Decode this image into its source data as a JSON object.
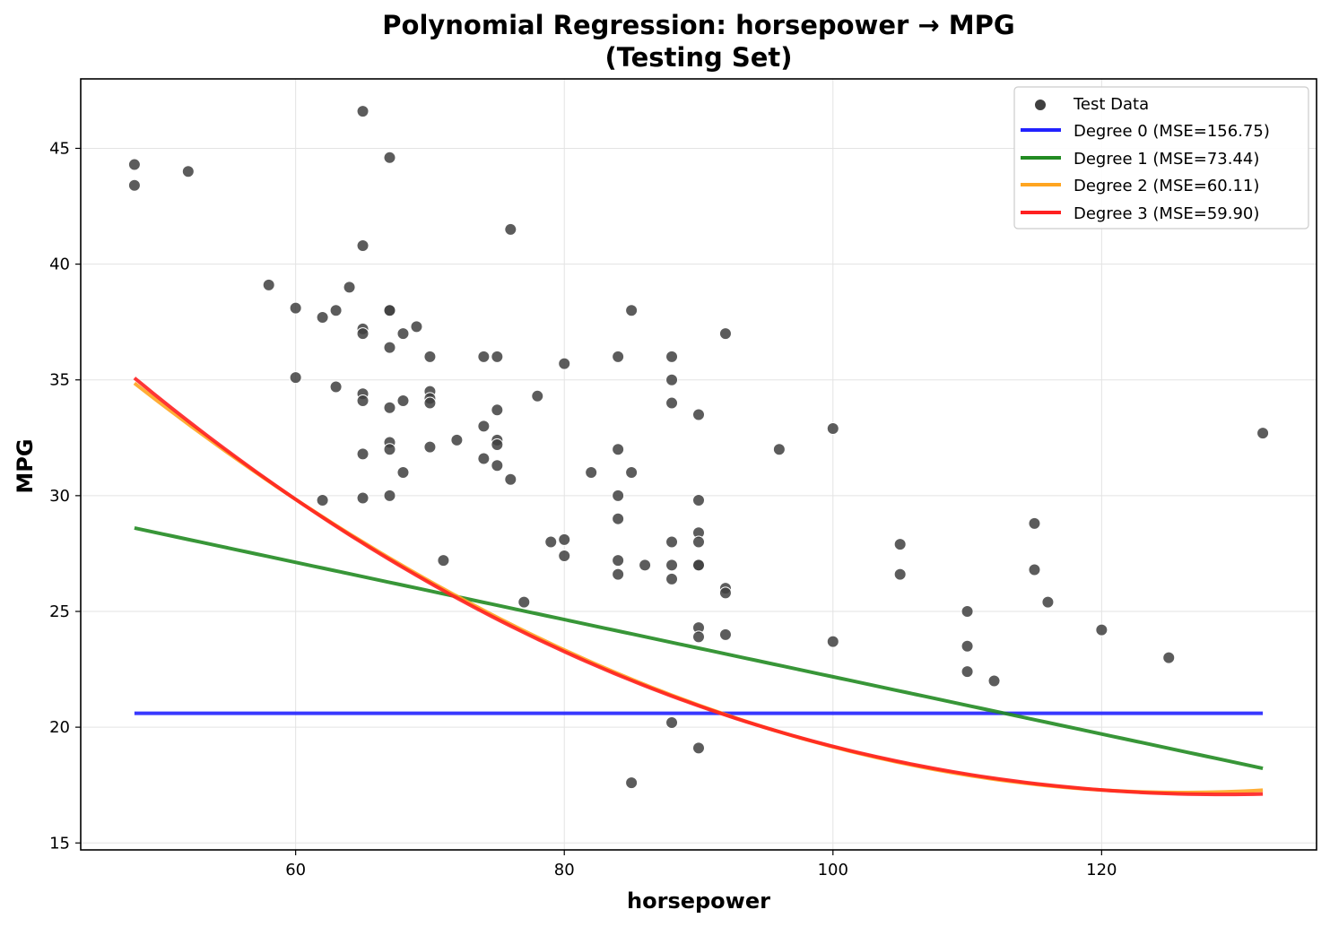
{
  "chart_data": {
    "type": "scatter",
    "title_line1": "Polynomial Regression: horsepower → MPG",
    "title_line2": "(Testing Set)",
    "xlabel": "horsepower",
    "ylabel": "MPG",
    "xlim": [
      44,
      136
    ],
    "ylim": [
      14.7,
      48
    ],
    "xticks": [
      60,
      80,
      100,
      120
    ],
    "yticks": [
      15,
      20,
      25,
      30,
      35,
      40,
      45
    ],
    "grid": true,
    "legend_position": "top-right",
    "scatter": {
      "name": "Test Data",
      "color": "#404040",
      "points": [
        [
          48,
          44.3
        ],
        [
          48,
          43.4
        ],
        [
          52,
          44.0
        ],
        [
          58,
          39.1
        ],
        [
          60,
          38.1
        ],
        [
          60,
          35.1
        ],
        [
          62,
          37.7
        ],
        [
          62,
          29.8
        ],
        [
          63,
          38.0
        ],
        [
          63,
          34.7
        ],
        [
          64,
          39.0
        ],
        [
          65,
          46.6
        ],
        [
          65,
          40.8
        ],
        [
          65,
          37.2
        ],
        [
          65,
          37.0
        ],
        [
          65,
          34.4
        ],
        [
          65,
          34.1
        ],
        [
          65,
          31.8
        ],
        [
          65,
          29.9
        ],
        [
          67,
          44.6
        ],
        [
          67,
          38.0
        ],
        [
          67,
          38.0
        ],
        [
          67,
          36.4
        ],
        [
          67,
          33.8
        ],
        [
          67,
          32.3
        ],
        [
          67,
          32.0
        ],
        [
          67,
          30.0
        ],
        [
          68,
          37.0
        ],
        [
          68,
          34.1
        ],
        [
          68,
          31.0
        ],
        [
          69,
          37.3
        ],
        [
          70,
          36.0
        ],
        [
          70,
          34.5
        ],
        [
          70,
          34.2
        ],
        [
          70,
          34.0
        ],
        [
          70,
          32.1
        ],
        [
          71,
          27.2
        ],
        [
          72,
          32.4
        ],
        [
          74,
          36.0
        ],
        [
          74,
          33.0
        ],
        [
          74,
          31.6
        ],
        [
          75,
          36.0
        ],
        [
          75,
          33.7
        ],
        [
          75,
          32.4
        ],
        [
          75,
          32.2
        ],
        [
          75,
          31.3
        ],
        [
          76,
          41.5
        ],
        [
          76,
          30.7
        ],
        [
          77,
          25.4
        ],
        [
          78,
          34.3
        ],
        [
          79,
          28.0
        ],
        [
          80,
          35.7
        ],
        [
          80,
          28.1
        ],
        [
          80,
          27.4
        ],
        [
          82,
          31.0
        ],
        [
          84,
          36.0
        ],
        [
          84,
          32.0
        ],
        [
          84,
          30.0
        ],
        [
          84,
          29.0
        ],
        [
          84,
          27.2
        ],
        [
          84,
          26.6
        ],
        [
          85,
          38.0
        ],
        [
          85,
          31.0
        ],
        [
          85,
          17.6
        ],
        [
          86,
          27.0
        ],
        [
          88,
          36.0
        ],
        [
          88,
          35.0
        ],
        [
          88,
          34.0
        ],
        [
          88,
          28.0
        ],
        [
          88,
          27.0
        ],
        [
          88,
          26.4
        ],
        [
          88,
          20.2
        ],
        [
          90,
          33.5
        ],
        [
          90,
          29.8
        ],
        [
          90,
          28.4
        ],
        [
          90,
          28.0
        ],
        [
          90,
          27.0
        ],
        [
          90,
          27.0
        ],
        [
          90,
          24.3
        ],
        [
          90,
          23.9
        ],
        [
          90,
          19.1
        ],
        [
          92,
          37.0
        ],
        [
          92,
          26.0
        ],
        [
          92,
          25.8
        ],
        [
          92,
          24.0
        ],
        [
          96,
          32.0
        ],
        [
          100,
          32.9
        ],
        [
          100,
          23.7
        ],
        [
          105,
          27.9
        ],
        [
          105,
          26.6
        ],
        [
          110,
          25.0
        ],
        [
          110,
          23.5
        ],
        [
          110,
          22.4
        ],
        [
          112,
          22.0
        ],
        [
          115,
          28.8
        ],
        [
          115,
          26.8
        ],
        [
          116,
          25.4
        ],
        [
          120,
          24.2
        ],
        [
          125,
          23.0
        ],
        [
          132,
          32.7
        ]
      ]
    },
    "series": [
      {
        "name": "Degree 0 (MSE=156.75)",
        "color": "#2222ff",
        "x_range": [
          48,
          132
        ],
        "coefficients": [
          20.6
        ]
      },
      {
        "name": "Degree 1 (MSE=73.44)",
        "color": "#228b22",
        "x_range": [
          48,
          132
        ],
        "coefficients": [
          34.534,
          -0.12357
        ]
      },
      {
        "name": "Degree 2 (MSE=60.11)",
        "color": "#ffa520",
        "x_range": [
          48,
          132
        ],
        "coefficients": [
          63.276,
          -0.73125,
          0.0029
        ]
      },
      {
        "name": "Degree 3 (MSE=59.90)",
        "color": "#ff2020",
        "x_range": [
          48,
          132
        ],
        "coefficients": [
          67.07,
          -0.8658,
          0.004418,
          -5.5e-06
        ]
      }
    ]
  }
}
